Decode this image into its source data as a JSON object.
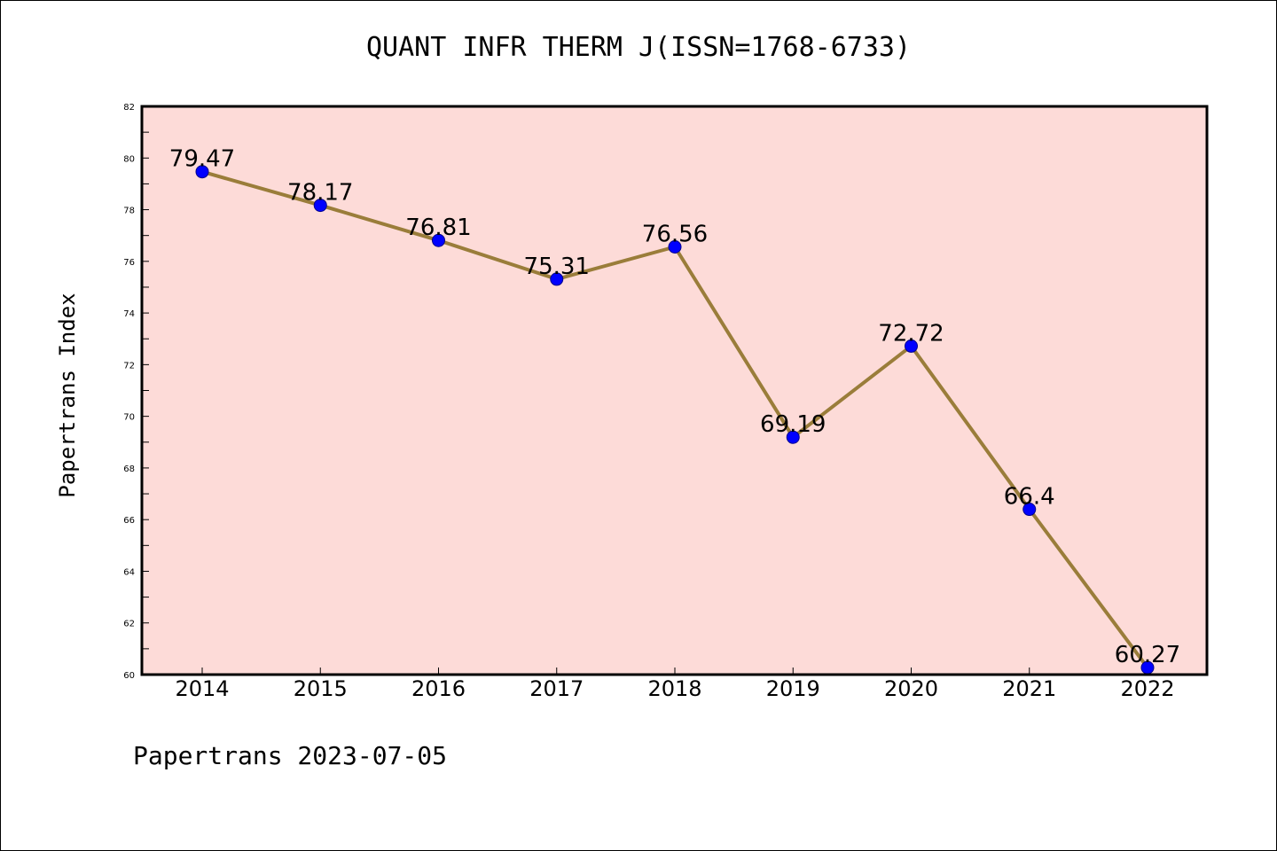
{
  "chart_data": {
    "type": "line",
    "title": "QUANT INFR THERM J(ISSN=1768-6733)",
    "ylabel": "Papertrans Index",
    "xlabel": "",
    "footer": "Papertrans 2023-07-05",
    "categories": [
      "2014",
      "2015",
      "2016",
      "2017",
      "2018",
      "2019",
      "2020",
      "2021",
      "2022"
    ],
    "values": [
      79.47,
      78.17,
      76.81,
      75.31,
      76.56,
      69.19,
      72.72,
      66.4,
      60.27
    ],
    "data_labels": [
      "79.47",
      "78.17",
      "76.81",
      "75.31",
      "76.56",
      "69.19",
      "72.72",
      "66.4",
      "60.27"
    ],
    "ylim": [
      60,
      82
    ],
    "yticks": [
      60,
      62,
      64,
      66,
      68,
      70,
      72,
      74,
      76,
      78,
      80,
      82
    ],
    "grid": false,
    "legend": "none",
    "colors": {
      "plot_background": "#fddbd8",
      "line": "#9a7d3a",
      "marker": "#0000ff",
      "marker_edge": "#00008b",
      "axis": "#000000"
    }
  }
}
